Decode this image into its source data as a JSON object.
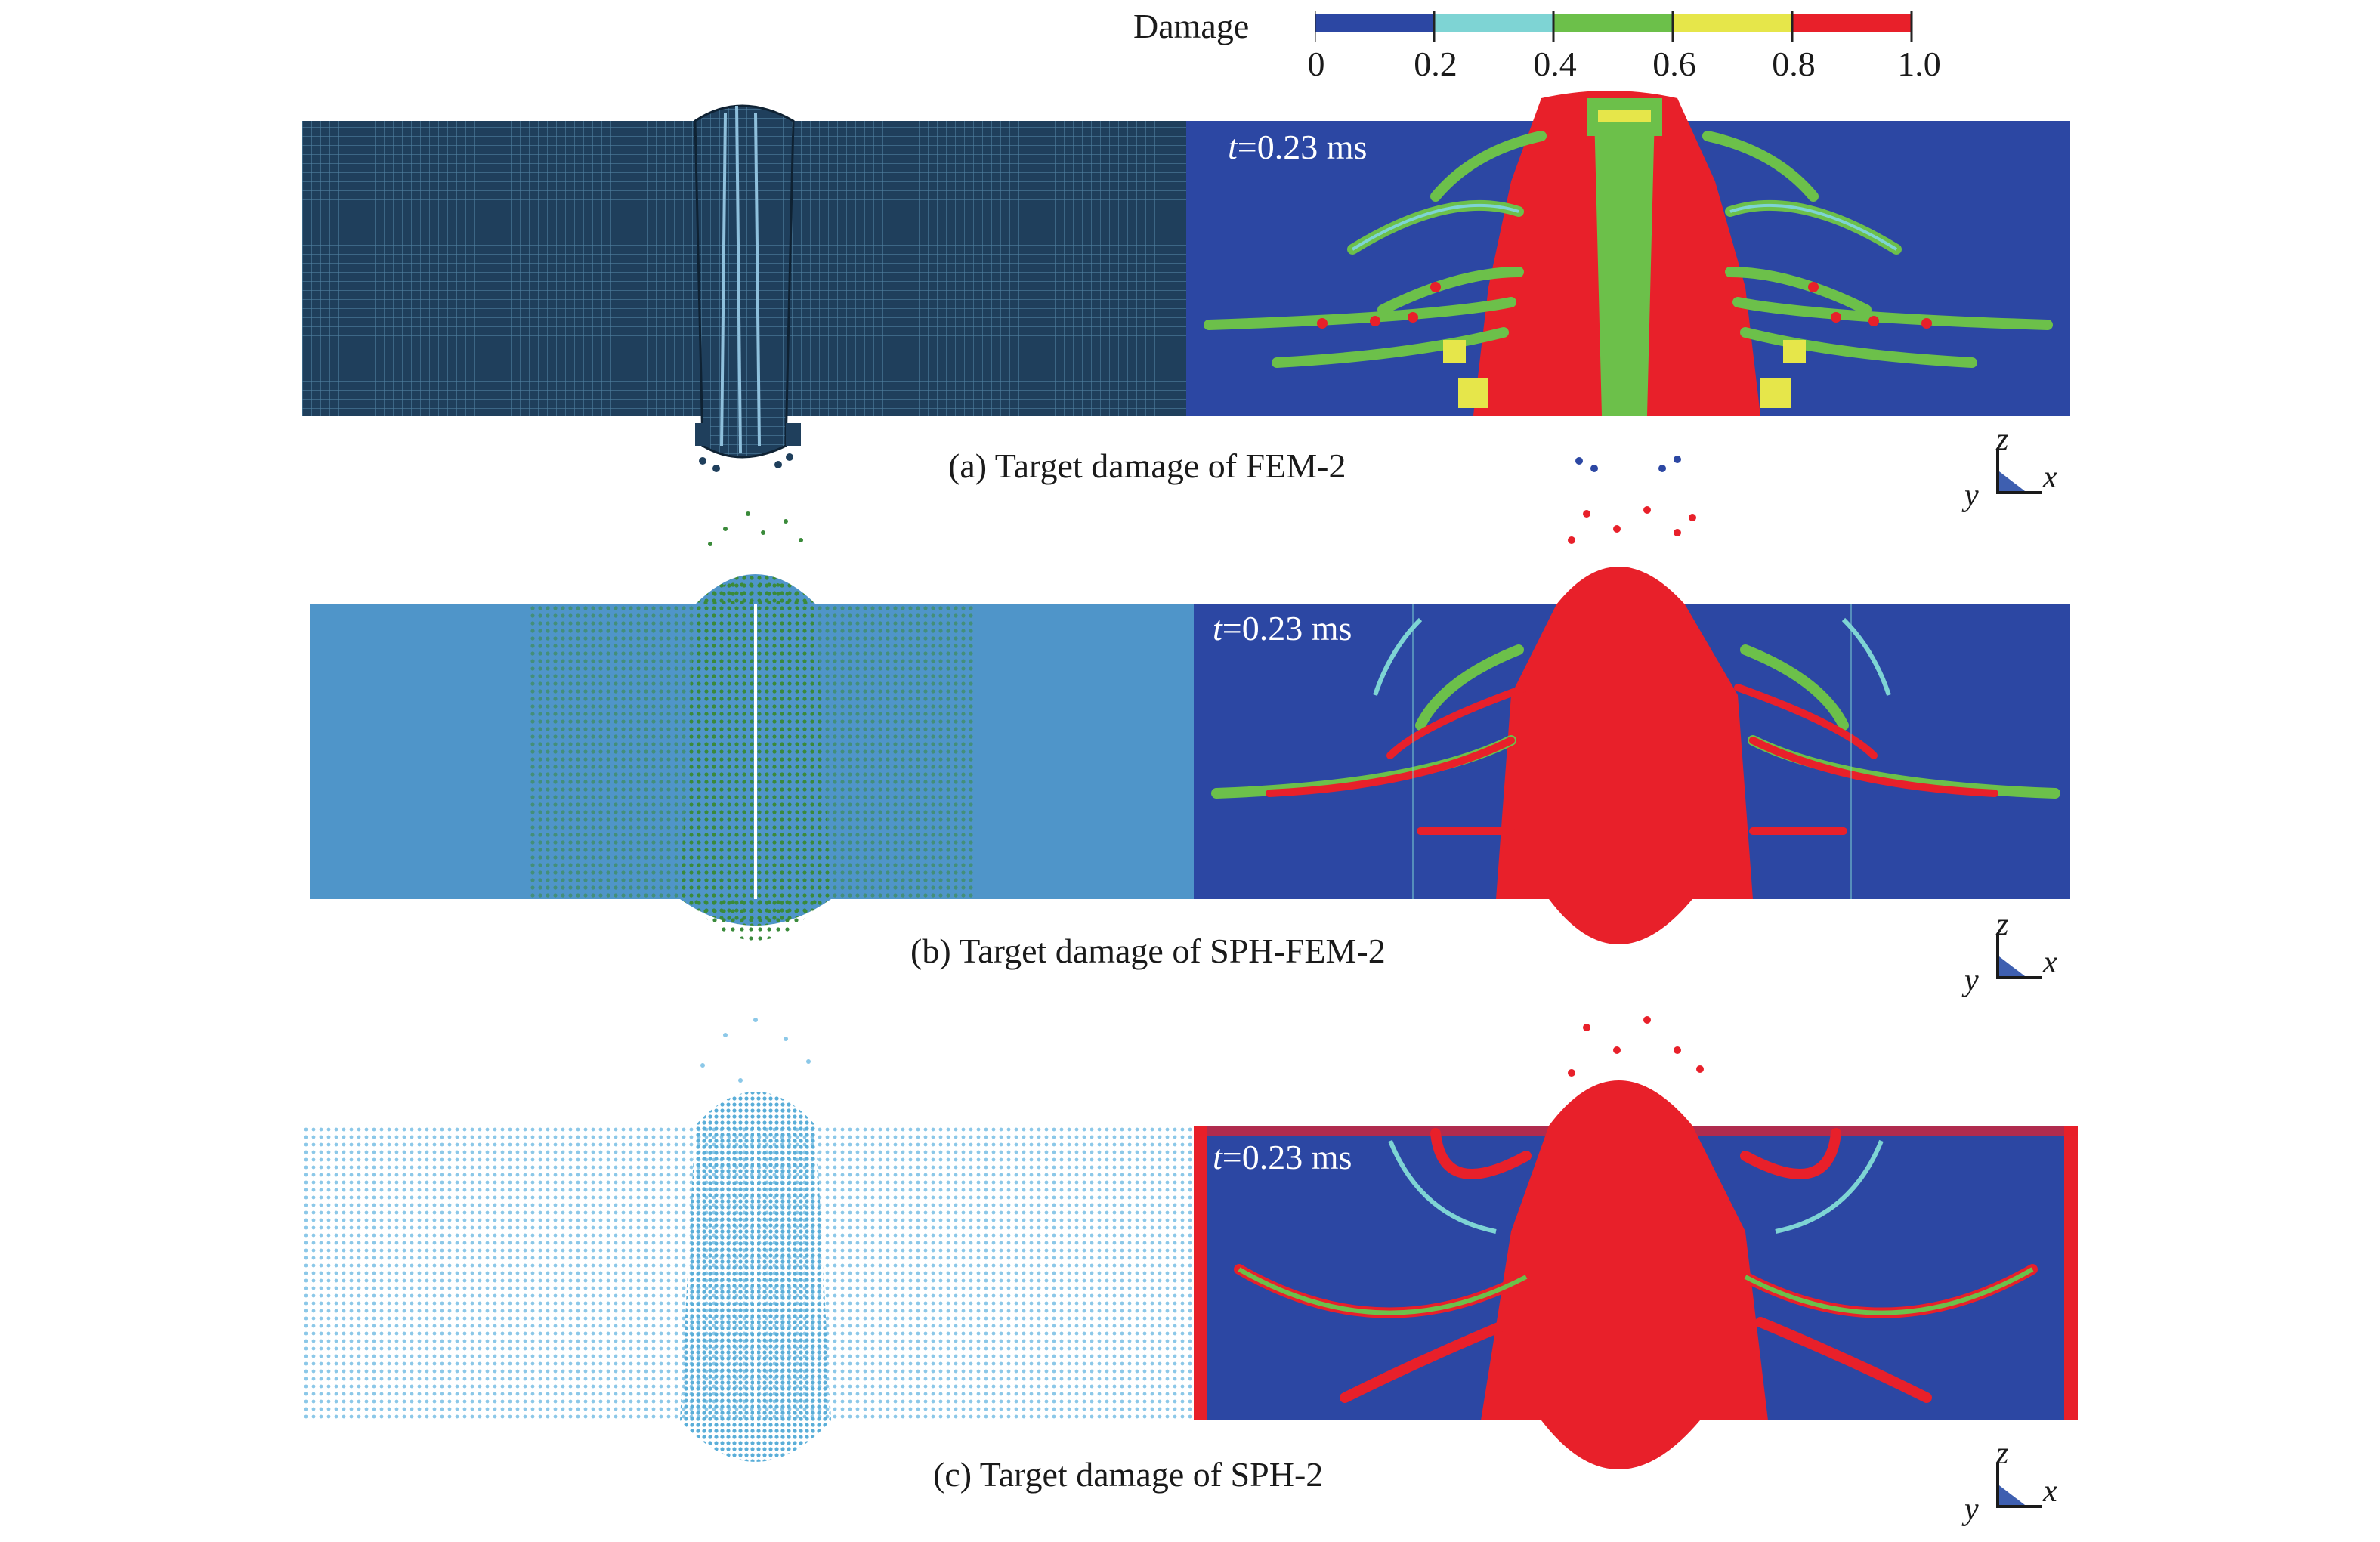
{
  "legend": {
    "title": "Damage",
    "ticks": [
      "0",
      "0.2",
      "0.4",
      "0.6",
      "0.8",
      "1.0"
    ],
    "colors": [
      "#2c47a3",
      "#7ed4d4",
      "#6cc04a",
      "#e6e64a",
      "#e8202a"
    ]
  },
  "panels": [
    {
      "time_var": "t",
      "time_rest": "=0.23 ms",
      "caption": "(a) Target damage of FEM-2"
    },
    {
      "time_var": "t",
      "time_rest": "=0.23 ms",
      "caption": "(b) Target damage of SPH-FEM-2"
    },
    {
      "time_var": "t",
      "time_rest": "=0.23 ms",
      "caption": "(c) Target damage of SPH-2"
    }
  ],
  "axes": {
    "z": "z",
    "y": "y",
    "x": "x"
  },
  "colors": {
    "fem_mesh": "#1f3f5c",
    "fem_line": "#5a8fb0",
    "sph_plate": "#4f95c9",
    "sph_particles_green": "#3a8a3a",
    "sph_particles_light": "#8cc8e8",
    "damage_blue": "#2c47a3",
    "damage_red": "#e8202a",
    "damage_green": "#6cc04a",
    "damage_cyan": "#7ed4d4",
    "damage_yellow": "#e6e64a"
  }
}
